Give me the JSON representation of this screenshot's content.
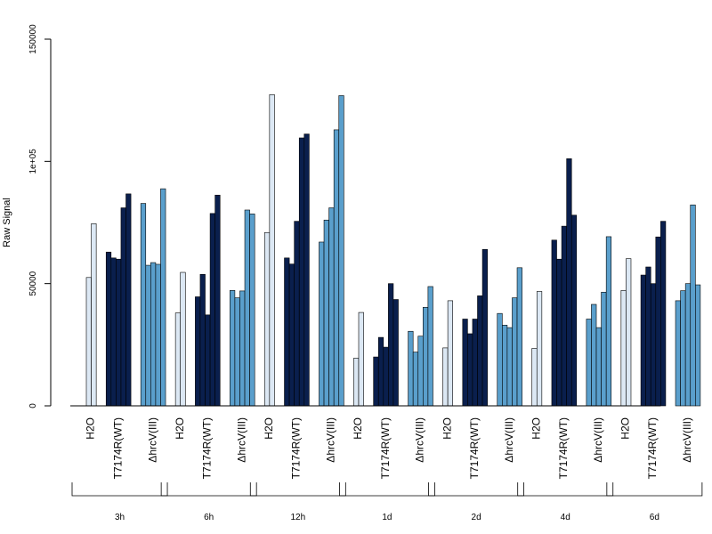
{
  "chart_data": {
    "type": "bar",
    "ylabel": "Raw Signal",
    "xlabel": "",
    "ylim": [
      0,
      150000
    ],
    "y_ticks": [
      0,
      50000,
      100000,
      150000
    ],
    "y_tick_labels": [
      "0",
      "50000",
      "1e+05",
      "150000"
    ],
    "grid": false,
    "category_labels": [
      "H2O",
      "T7174R(WT)",
      "ΔhrcV(III)"
    ],
    "category_colors": {
      "H2O": "#dce8f4",
      "T7174R(WT)": "#0a1f4d",
      "ΔhrcV(III)": "#5a9fcc"
    },
    "groups": [
      {
        "label": "3h",
        "categories": [
          {
            "name": "H2O",
            "values": [
              52500,
              74500
            ]
          },
          {
            "name": "T7174R(WT)",
            "values": [
              62900,
              60500,
              60000,
              81000,
              86700
            ]
          },
          {
            "name": "ΔhrcV(III)",
            "values": [
              82800,
              57500,
              58600,
              57900,
              88800
            ]
          }
        ]
      },
      {
        "label": "6h",
        "categories": [
          {
            "name": "H2O",
            "values": [
              38000,
              54600
            ]
          },
          {
            "name": "T7174R(WT)",
            "values": [
              44600,
              53800,
              37200,
              78700,
              86200
            ]
          },
          {
            "name": "ΔhrcV(III)",
            "values": [
              47200,
              44200,
              47000,
              80100,
              78500
            ]
          }
        ]
      },
      {
        "label": "12h",
        "categories": [
          {
            "name": "H2O",
            "values": [
              70900,
              127300
            ]
          },
          {
            "name": "T7174R(WT)",
            "values": [
              60500,
              58000,
              75500,
              109600,
              111200
            ]
          },
          {
            "name": "ΔhrcV(III)",
            "values": [
              67000,
              76000,
              81000,
              112900,
              126900
            ]
          }
        ]
      },
      {
        "label": "1d",
        "categories": [
          {
            "name": "H2O",
            "values": [
              19500,
              38200
            ]
          },
          {
            "name": "T7174R(WT)",
            "values": [
              20000,
              28000,
              24000,
              50000,
              43500
            ]
          },
          {
            "name": "ΔhrcV(III)",
            "values": [
              30500,
              22000,
              28500,
              40300,
              48800
            ]
          }
        ]
      },
      {
        "label": "2d",
        "categories": [
          {
            "name": "H2O",
            "values": [
              23700,
              43000
            ]
          },
          {
            "name": "T7174R(WT)",
            "values": [
              35500,
              29500,
              35500,
              45000,
              64000
            ]
          },
          {
            "name": "ΔhrcV(III)",
            "values": [
              37800,
              33000,
              32000,
              44200,
              56500
            ]
          }
        ]
      },
      {
        "label": "4d",
        "categories": [
          {
            "name": "H2O",
            "values": [
              23500,
              46800
            ]
          },
          {
            "name": "T7174R(WT)",
            "values": [
              67800,
              60000,
              73500,
              101100,
              78000
            ]
          },
          {
            "name": "ΔhrcV(III)",
            "values": [
              35500,
              41500,
              32000,
              46500,
              69200
            ]
          }
        ]
      },
      {
        "label": "6d",
        "categories": [
          {
            "name": "H2O",
            "values": [
              47200,
              60200
            ]
          },
          {
            "name": "T7174R(WT)",
            "values": [
              53500,
              56800,
              50000,
              69100,
              75500
            ]
          },
          {
            "name": "ΔhrcV(III)",
            "values": [
              43000,
              47100,
              50000,
              82200,
              49500
            ]
          }
        ]
      }
    ]
  }
}
